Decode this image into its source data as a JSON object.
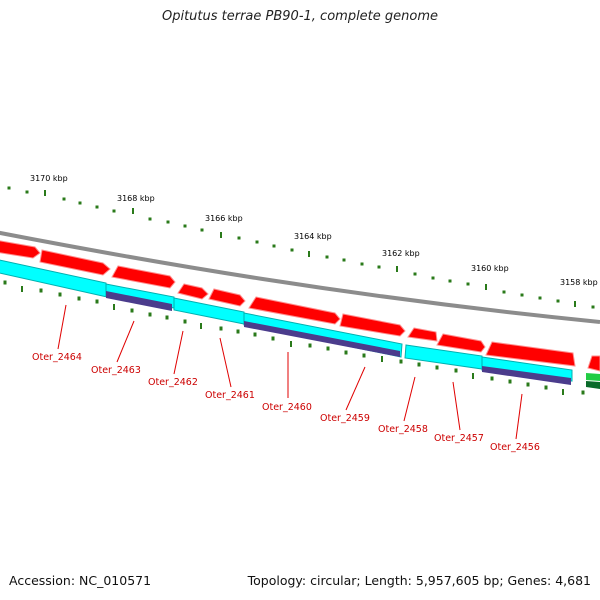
{
  "title": "Opitutus terrae PB90-1, complete genome",
  "accession": "Accession: NC_010571",
  "summary": "Topology: circular; Length: 5,957,605 bp; Genes: 4,681",
  "kbp_labels": [
    "3170 kbp",
    "3168 kbp",
    "3166 kbp",
    "3164 kbp",
    "3162 kbp",
    "3160 kbp",
    "3158 kbp"
  ],
  "gene_labels": [
    "Oter_2464",
    "Oter_2463",
    "Oter_2462",
    "Oter_2461",
    "Oter_2460",
    "Oter_2459",
    "Oter_2458",
    "Oter_2457",
    "Oter_2456"
  ],
  "colors": {
    "backbone": "#8c8c8c",
    "cds": "#ff0000",
    "cds_light": "#ff8c8c",
    "rna": "#00ffff",
    "rna_dark": "#00b0b0",
    "blast": "#4b3c8c",
    "green": "#22aa22",
    "ticks": "#2a7a1a",
    "label_red": "#cc0000"
  }
}
